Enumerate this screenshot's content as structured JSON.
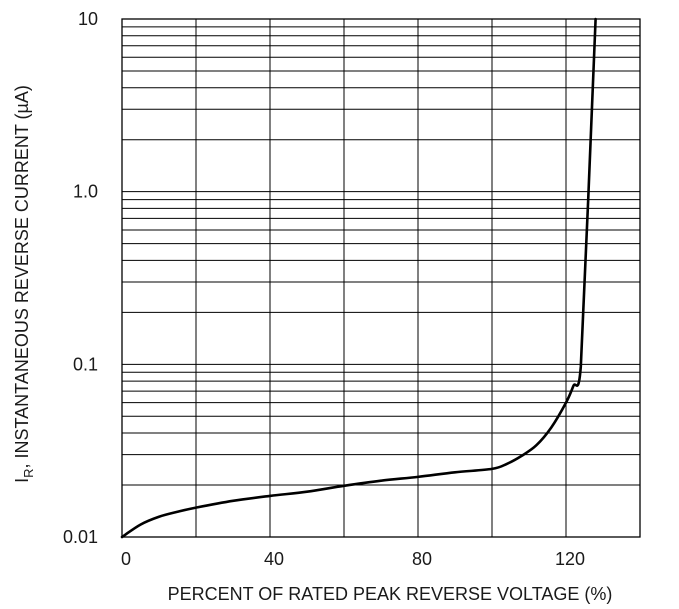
{
  "chart_data": {
    "type": "line",
    "title": "",
    "xlabel": "PERCENT OF RATED PEAK REVERSE VOLTAGE (%)",
    "ylabel": {
      "prefix": "I",
      "subscript": "R",
      "suffix": ", INSTANTANEOUS REVERSE CURRENT (µA)"
    },
    "xlim": [
      0,
      140
    ],
    "ylim": [
      0.01,
      10
    ],
    "yscale": "log",
    "grid": true,
    "x_ticks": [
      0,
      40,
      80,
      120
    ],
    "x_tick_labels": [
      "0",
      "40",
      "80",
      "120"
    ],
    "y_ticks": [
      0.01,
      0.1,
      1.0,
      10
    ],
    "y_tick_labels": [
      "0.01",
      "0.1",
      "1.0",
      "10"
    ],
    "colors": {
      "curve": "#000000",
      "grid": "#000000",
      "text": "#1a1a1a"
    },
    "series": [
      {
        "x": [
          0,
          5,
          10,
          15,
          20,
          30,
          40,
          50,
          60,
          70,
          80,
          90,
          100,
          104,
          108,
          112,
          116,
          120,
          122,
          124,
          126,
          128
        ],
        "y": [
          0.01,
          0.0118,
          0.0131,
          0.014,
          0.0148,
          0.0162,
          0.0173,
          0.0183,
          0.0198,
          0.0212,
          0.0223,
          0.0237,
          0.0248,
          0.0265,
          0.0295,
          0.034,
          0.043,
          0.06,
          0.075,
          0.097,
          0.9,
          10
        ]
      }
    ]
  }
}
